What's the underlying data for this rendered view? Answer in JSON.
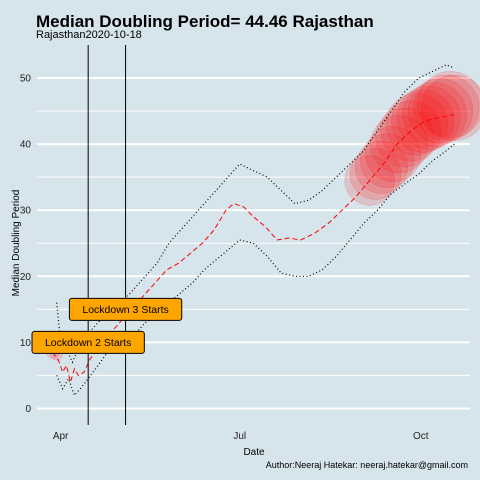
{
  "chart_data": {
    "type": "line",
    "title": "Median Doubling Period=  44.46 Rajasthan",
    "subtitle": "Rajasthan2020-10-18",
    "xlabel": "Date",
    "ylabel": "Median Doubling Period",
    "caption": "Author:Neeraj Hatekar: neeraj.hatekar@gmail.com",
    "xlim": [
      "2020-03-20",
      "2020-10-26"
    ],
    "ylim": [
      -2.5,
      55
    ],
    "x_ticks": [
      {
        "date": "2020-04-01",
        "label": "Apr"
      },
      {
        "date": "2020-07-01",
        "label": "Jul"
      },
      {
        "date": "2020-10-01",
        "label": "Oct"
      }
    ],
    "y_ticks": [
      0,
      10,
      20,
      30,
      40,
      50
    ],
    "grid": "horizontal major and minor, white",
    "background": "#d6e4ec",
    "vlines": [
      {
        "date": "2020-04-15",
        "label": "Lockdown 2 Starts",
        "label_y": 10
      },
      {
        "date": "2020-05-04",
        "label": "Lockdown 3 Starts",
        "label_y": 15
      }
    ],
    "annotation_fill": "#ffa500",
    "series": [
      {
        "style": "median dashed red",
        "color": "#ff0000",
        "points": [
          [
            "2020-03-28",
            8.5
          ],
          [
            "2020-03-31",
            7.2
          ],
          [
            "2020-04-02",
            5.5
          ],
          [
            "2020-04-04",
            6.5
          ],
          [
            "2020-04-06",
            4.0
          ],
          [
            "2020-04-08",
            6.0
          ],
          [
            "2020-04-10",
            5.0
          ],
          [
            "2020-04-13",
            5.5
          ],
          [
            "2020-04-16",
            7.5
          ],
          [
            "2020-04-20",
            9.0
          ],
          [
            "2020-04-25",
            11.0
          ],
          [
            "2020-05-01",
            13.0
          ],
          [
            "2020-05-07",
            15.0
          ],
          [
            "2020-05-13",
            17.0
          ],
          [
            "2020-05-19",
            19.0
          ],
          [
            "2020-05-25",
            21.0
          ],
          [
            "2020-05-31",
            22.0
          ],
          [
            "2020-06-06",
            23.5
          ],
          [
            "2020-06-12",
            25.0
          ],
          [
            "2020-06-18",
            27.0
          ],
          [
            "2020-06-24",
            30.0
          ],
          [
            "2020-06-28",
            31.0
          ],
          [
            "2020-07-03",
            30.5
          ],
          [
            "2020-07-08",
            29.0
          ],
          [
            "2020-07-14",
            27.5
          ],
          [
            "2020-07-20",
            25.5
          ],
          [
            "2020-07-26",
            25.8
          ],
          [
            "2020-08-01",
            25.5
          ],
          [
            "2020-08-08",
            26.5
          ],
          [
            "2020-08-15",
            28.0
          ],
          [
            "2020-08-22",
            30.0
          ],
          [
            "2020-08-29",
            32.0
          ],
          [
            "2020-09-05",
            34.5
          ],
          [
            "2020-09-12",
            37.0
          ],
          [
            "2020-09-19",
            40.0
          ],
          [
            "2020-09-26",
            42.0
          ],
          [
            "2020-10-03",
            43.5
          ],
          [
            "2020-10-10",
            44.0
          ],
          [
            "2020-10-18",
            44.46
          ]
        ]
      },
      {
        "style": "upper band dotted black",
        "color": "#000000",
        "points": [
          [
            "2020-03-30",
            16.0
          ],
          [
            "2020-04-01",
            10.0
          ],
          [
            "2020-04-04",
            9.0
          ],
          [
            "2020-04-07",
            7.0
          ],
          [
            "2020-04-10",
            9.0
          ],
          [
            "2020-04-14",
            11.0
          ],
          [
            "2020-04-20",
            13.0
          ],
          [
            "2020-04-26",
            15.0
          ],
          [
            "2020-05-02",
            16.0
          ],
          [
            "2020-05-08",
            18.0
          ],
          [
            "2020-05-14",
            20.0
          ],
          [
            "2020-05-20",
            22.0
          ],
          [
            "2020-05-26",
            25.0
          ],
          [
            "2020-06-01",
            27.0
          ],
          [
            "2020-06-07",
            29.0
          ],
          [
            "2020-06-13",
            31.0
          ],
          [
            "2020-06-19",
            33.0
          ],
          [
            "2020-06-25",
            35.0
          ],
          [
            "2020-07-01",
            37.0
          ],
          [
            "2020-07-08",
            36.0
          ],
          [
            "2020-07-15",
            35.0
          ],
          [
            "2020-07-22",
            33.0
          ],
          [
            "2020-07-29",
            31.0
          ],
          [
            "2020-08-05",
            31.5
          ],
          [
            "2020-08-12",
            33.0
          ],
          [
            "2020-08-19",
            35.0
          ],
          [
            "2020-08-26",
            37.0
          ],
          [
            "2020-09-02",
            39.0
          ],
          [
            "2020-09-09",
            42.0
          ],
          [
            "2020-09-16",
            45.0
          ],
          [
            "2020-09-23",
            48.0
          ],
          [
            "2020-09-30",
            50.0
          ],
          [
            "2020-10-07",
            51.0
          ],
          [
            "2020-10-14",
            52.0
          ],
          [
            "2020-10-18",
            51.5
          ]
        ]
      },
      {
        "style": "lower band dotted black",
        "color": "#000000",
        "points": [
          [
            "2020-03-30",
            5.0
          ],
          [
            "2020-04-02",
            3.0
          ],
          [
            "2020-04-05",
            4.5
          ],
          [
            "2020-04-08",
            2.0
          ],
          [
            "2020-04-11",
            3.0
          ],
          [
            "2020-04-15",
            4.5
          ],
          [
            "2020-04-20",
            6.5
          ],
          [
            "2020-04-26",
            9.0
          ],
          [
            "2020-05-02",
            10.0
          ],
          [
            "2020-05-08",
            11.0
          ],
          [
            "2020-05-14",
            13.0
          ],
          [
            "2020-05-20",
            14.0
          ],
          [
            "2020-05-26",
            16.0
          ],
          [
            "2020-06-01",
            17.5
          ],
          [
            "2020-06-07",
            19.0
          ],
          [
            "2020-06-13",
            21.0
          ],
          [
            "2020-06-19",
            22.5
          ],
          [
            "2020-06-25",
            24.0
          ],
          [
            "2020-07-01",
            25.5
          ],
          [
            "2020-07-08",
            25.0
          ],
          [
            "2020-07-15",
            23.0
          ],
          [
            "2020-07-22",
            20.5
          ],
          [
            "2020-07-29",
            20.0
          ],
          [
            "2020-08-05",
            20.0
          ],
          [
            "2020-08-12",
            21.0
          ],
          [
            "2020-08-19",
            23.0
          ],
          [
            "2020-08-26",
            25.5
          ],
          [
            "2020-09-02",
            28.0
          ],
          [
            "2020-09-09",
            30.0
          ],
          [
            "2020-09-16",
            32.5
          ],
          [
            "2020-09-23",
            34.0
          ],
          [
            "2020-09-30",
            35.5
          ],
          [
            "2020-10-07",
            37.5
          ],
          [
            "2020-10-14",
            39.0
          ],
          [
            "2020-10-18",
            40.0
          ]
        ]
      },
      {
        "style": "bubbles sized by doubling period, red translucent",
        "color": "#ff0000",
        "points": [
          [
            "2020-03-28",
            8.5
          ],
          [
            "2020-03-30",
            8.2
          ],
          [
            "2020-09-05",
            34.5
          ],
          [
            "2020-09-08",
            35.5
          ],
          [
            "2020-09-11",
            36.5
          ],
          [
            "2020-09-14",
            37.5
          ],
          [
            "2020-09-17",
            38.5
          ],
          [
            "2020-09-20",
            40.0
          ],
          [
            "2020-09-23",
            41.0
          ],
          [
            "2020-09-26",
            42.0
          ],
          [
            "2020-09-29",
            43.0
          ],
          [
            "2020-10-02",
            43.5
          ],
          [
            "2020-10-05",
            44.0
          ],
          [
            "2020-10-08",
            44.5
          ],
          [
            "2020-10-11",
            45.0
          ],
          [
            "2020-10-14",
            45.5
          ],
          [
            "2020-10-16",
            46.0
          ],
          [
            "2020-10-18",
            45.5
          ]
        ]
      }
    ]
  }
}
